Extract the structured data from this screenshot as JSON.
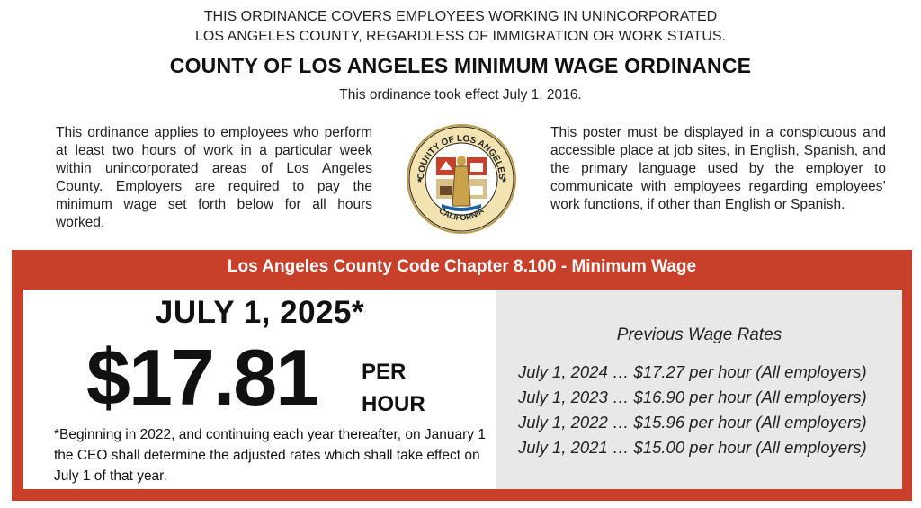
{
  "notice": {
    "line1": "THIS ORDINANCE COVERS EMPLOYEES WORKING IN UNINCORPORATED",
    "line2": "LOS ANGELES COUNTY, REGARDLESS OF IMMIGRATION OR WORK STATUS."
  },
  "title": "COUNTY OF LOS ANGELES MINIMUM WAGE ORDINANCE",
  "effective_date": "This ordinance took effect July 1, 2016.",
  "intro_left": "This ordinance applies to employees who perform at least two hours of work in a particular week within unincorporated areas of Los Angeles County. Employers are required to pay the minimum wage set forth below for all hours worked.",
  "intro_right": "This poster must be displayed in a conspicuous and accessible place at job sites, in English, Spanish, and the primary language used by the employer to communicate with employees regarding employees’ work functions, if other than English or Spanish.",
  "seal": {
    "top_text": "COUNTY OF LOS ANGELES",
    "bottom_text": "CALIFORNIA",
    "icon": "county-seal-icon"
  },
  "box": {
    "header": "Los Angeles County Code Chapter 8.100 - Minimum Wage",
    "date": "JULY 1, 2025*",
    "amount": "$17.81",
    "per": "PER",
    "hour": "HOUR",
    "footnote": "*Beginning in 2022, and continuing each year thereafter, on January 1 the CEO shall determine the adjusted rates which shall take effect on July 1 of that year.",
    "previous_title": "Previous Wage Rates",
    "previous_rates": [
      "July 1, 2024 … $17.27 per hour (All employers)",
      "July 1, 2023 … $16.90 per hour (All employers)",
      "July 1, 2022 … $15.96 per hour (All employers)",
      "July 1, 2021 … $15.00 per hour (All employers)"
    ]
  },
  "colors": {
    "accent_red": "#c8402a",
    "panel_gray": "#e8e8e8"
  }
}
